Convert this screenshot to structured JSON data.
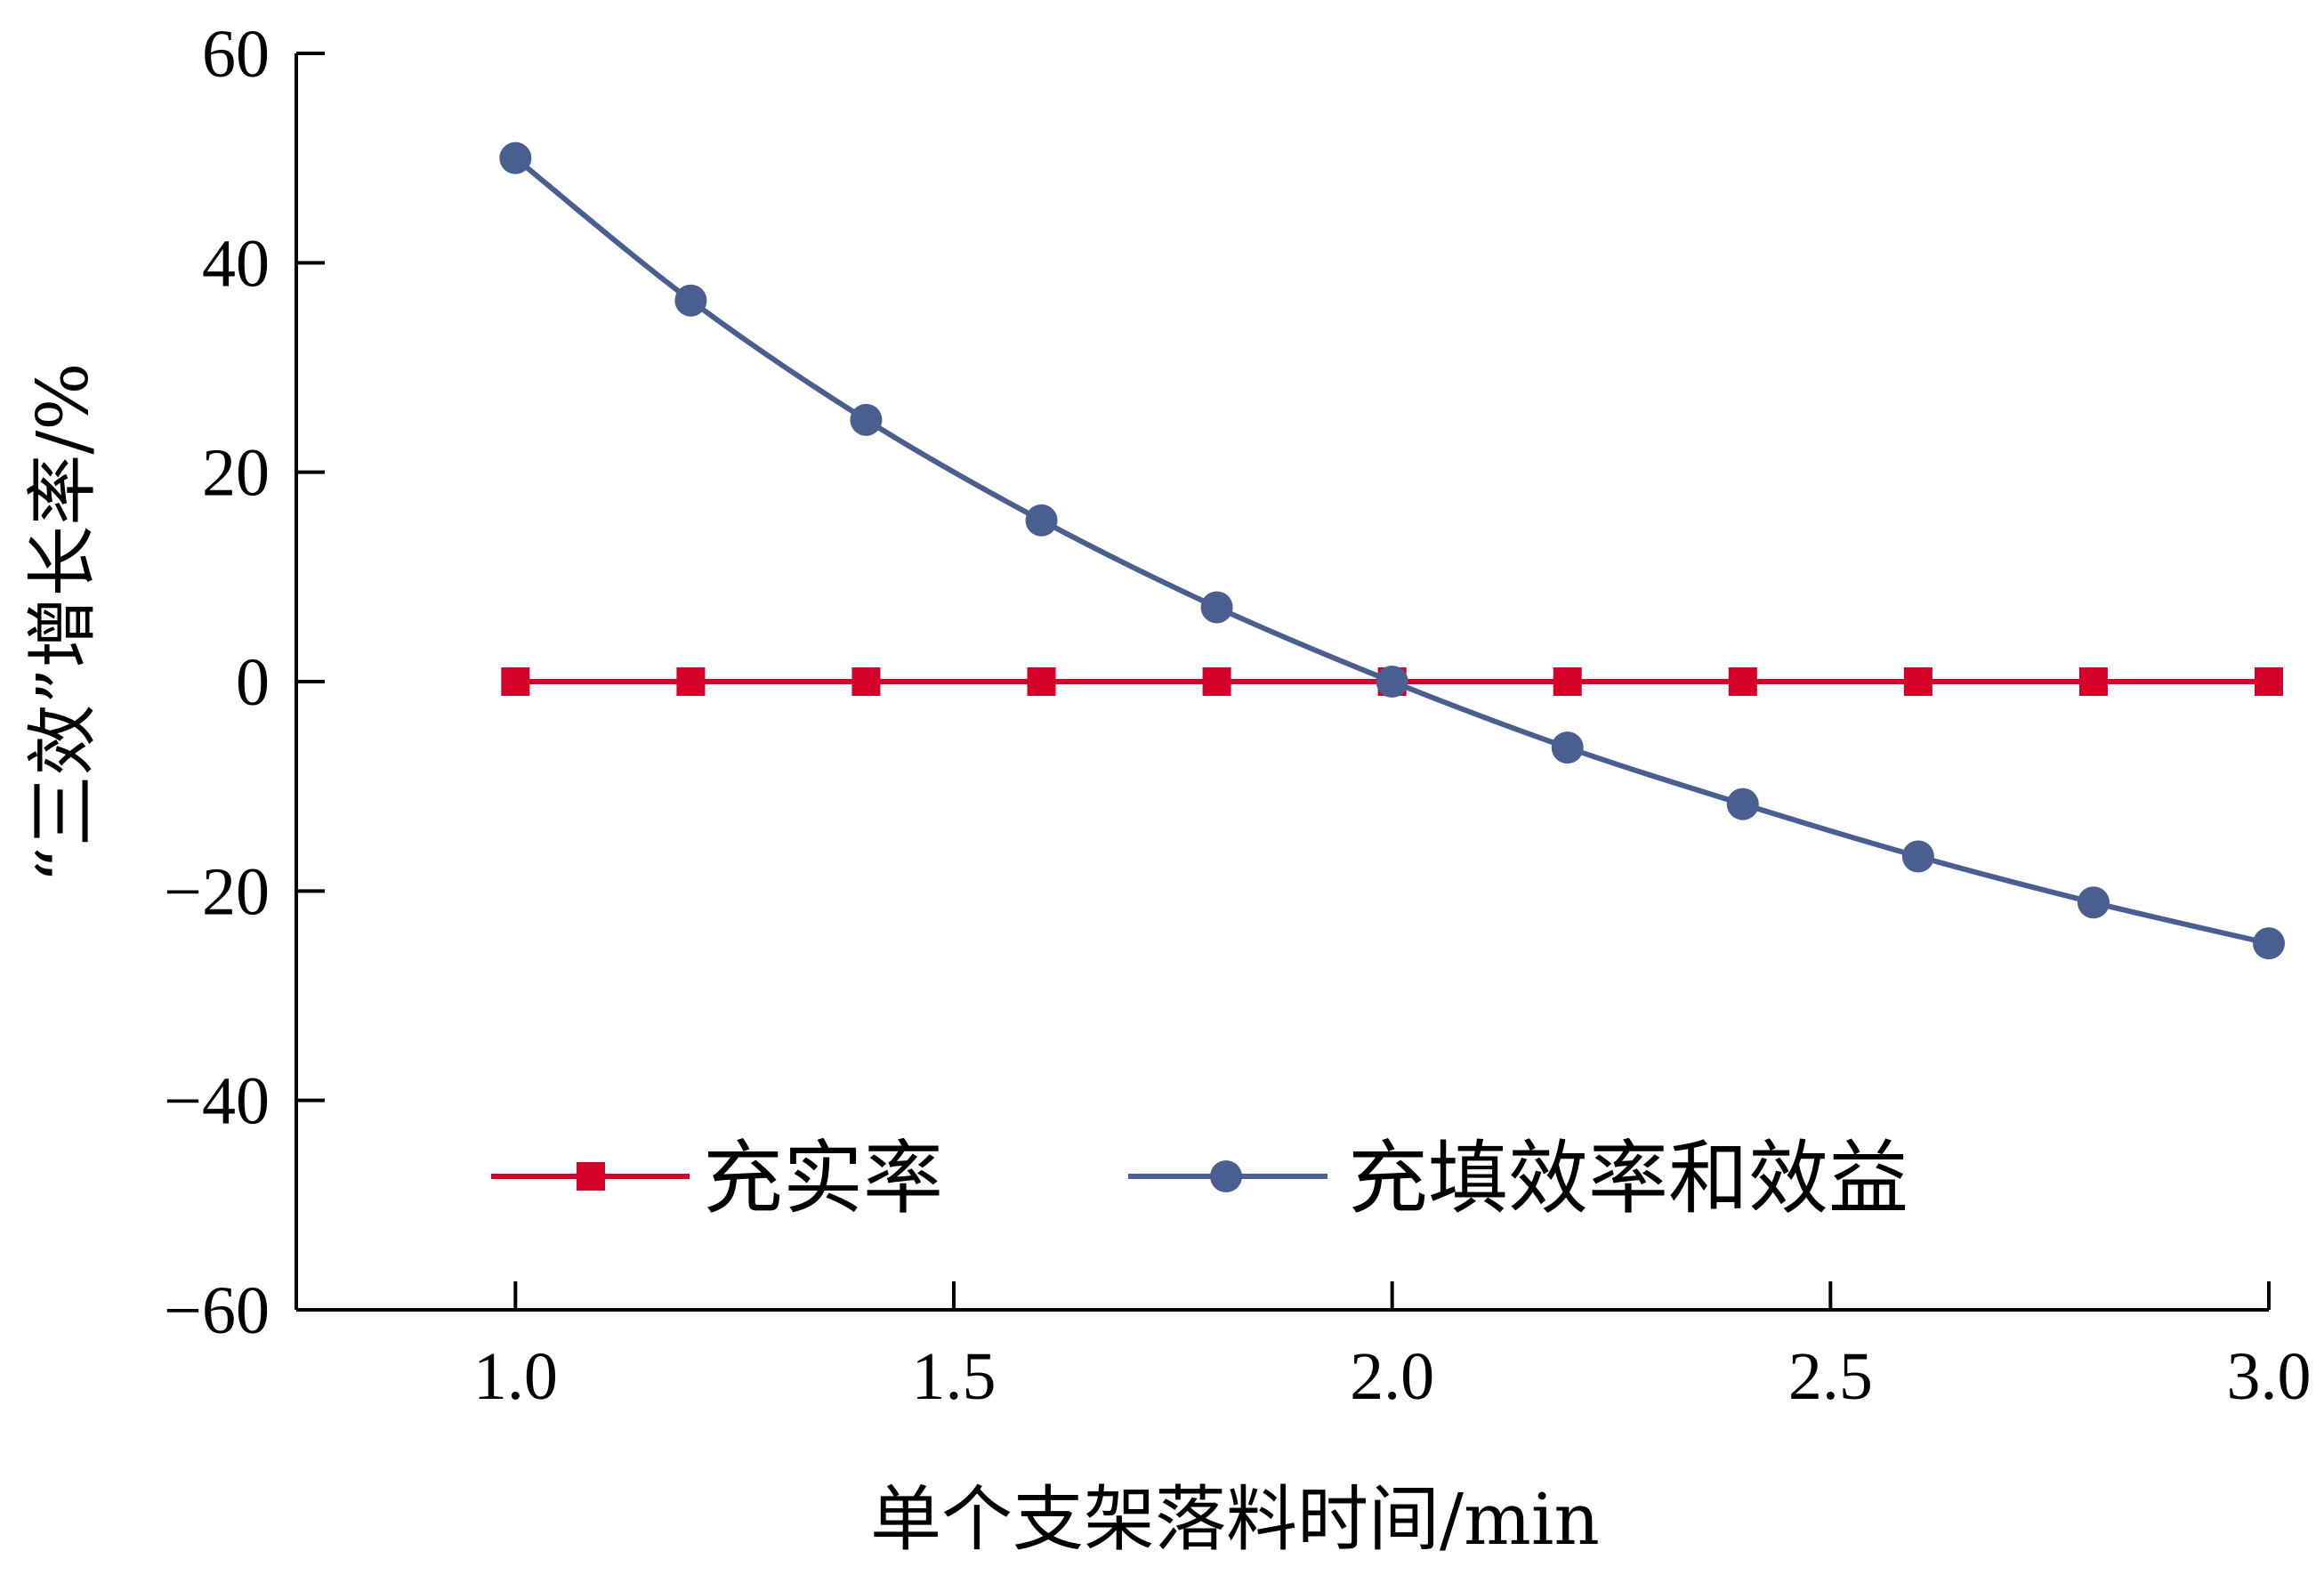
{
  "chart_data": {
    "type": "line",
    "xlabel": "单个支架落料时间/min",
    "ylabel": "“三效”增长率/%",
    "xlim": [
      0.75,
      3.0
    ],
    "ylim": [
      -60,
      60
    ],
    "x_ticks": [
      1.0,
      1.5,
      2.0,
      2.5,
      3.0
    ],
    "x_tick_labels": [
      "1.0",
      "1.5",
      "2.0",
      "2.5",
      "3.0"
    ],
    "y_ticks": [
      60,
      40,
      20,
      0,
      -20,
      -40,
      -60
    ],
    "y_tick_labels": [
      "60",
      "40",
      "20",
      "0",
      "−20",
      "−40",
      "−60"
    ],
    "grid": false,
    "legend_position": "bottom-center",
    "x": [
      1.0,
      1.2,
      1.4,
      1.6,
      1.8,
      2.0,
      2.2,
      2.4,
      2.6,
      2.8,
      3.0
    ],
    "series": [
      {
        "name": "充实率",
        "marker": "square",
        "color": "#d4002a",
        "values": [
          0,
          0,
          0,
          0,
          0,
          0,
          0,
          0,
          0,
          0,
          0
        ]
      },
      {
        "name": "充填效率和效益",
        "marker": "circle",
        "color": "#4a5f8f",
        "values": [
          50,
          36.4,
          25,
          15.4,
          7.1,
          0,
          -6.3,
          -11.7,
          -16.7,
          -21.1,
          -25
        ]
      }
    ]
  }
}
